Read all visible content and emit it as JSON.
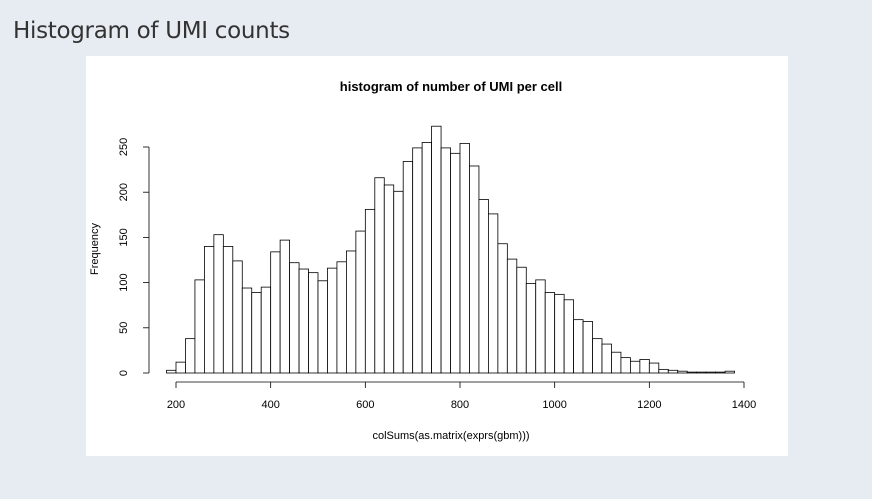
{
  "page": {
    "title": "Histogram of UMI counts"
  },
  "chart_data": {
    "type": "bar",
    "title": "histogram of number of UMI per cell",
    "xlabel": "colSums(as.matrix(exprs(gbm)))",
    "ylabel": "Frequency",
    "bin_width": 20,
    "bin_start": 180,
    "xlim": [
      180,
      1400
    ],
    "ylim": [
      0,
      275
    ],
    "x_ticks": [
      200,
      400,
      600,
      800,
      1000,
      1200,
      1400
    ],
    "y_ticks": [
      0,
      50,
      100,
      150,
      200,
      250
    ],
    "values": [
      3,
      12,
      38,
      103,
      140,
      153,
      140,
      124,
      94,
      89,
      95,
      134,
      147,
      122,
      115,
      111,
      102,
      116,
      123,
      135,
      157,
      181,
      216,
      208,
      201,
      234,
      249,
      255,
      273,
      249,
      243,
      254,
      229,
      192,
      176,
      143,
      126,
      117,
      99,
      103,
      89,
      87,
      81,
      59,
      57,
      38,
      32,
      23,
      17,
      13,
      15,
      11,
      4,
      3,
      2,
      1,
      1,
      1,
      1,
      2
    ]
  }
}
